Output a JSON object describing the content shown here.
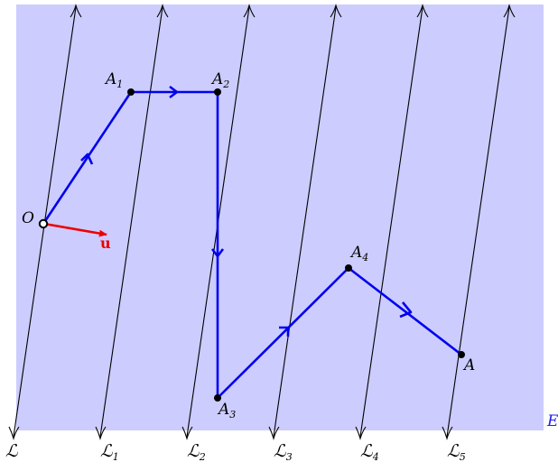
{
  "colors": {
    "plane_fill": "#ccccff",
    "path": "#0000ee",
    "lines": "#000000",
    "vector": "#ee0000",
    "plane_label": "#2222ee"
  },
  "labels": {
    "origin": "O",
    "vector_u": "u",
    "plane": "E",
    "script_L": "ℒ",
    "A": "A",
    "sub_1": "1",
    "sub_2": "2",
    "sub_3": "3",
    "sub_4": "4",
    "sub_5": "5"
  }
}
